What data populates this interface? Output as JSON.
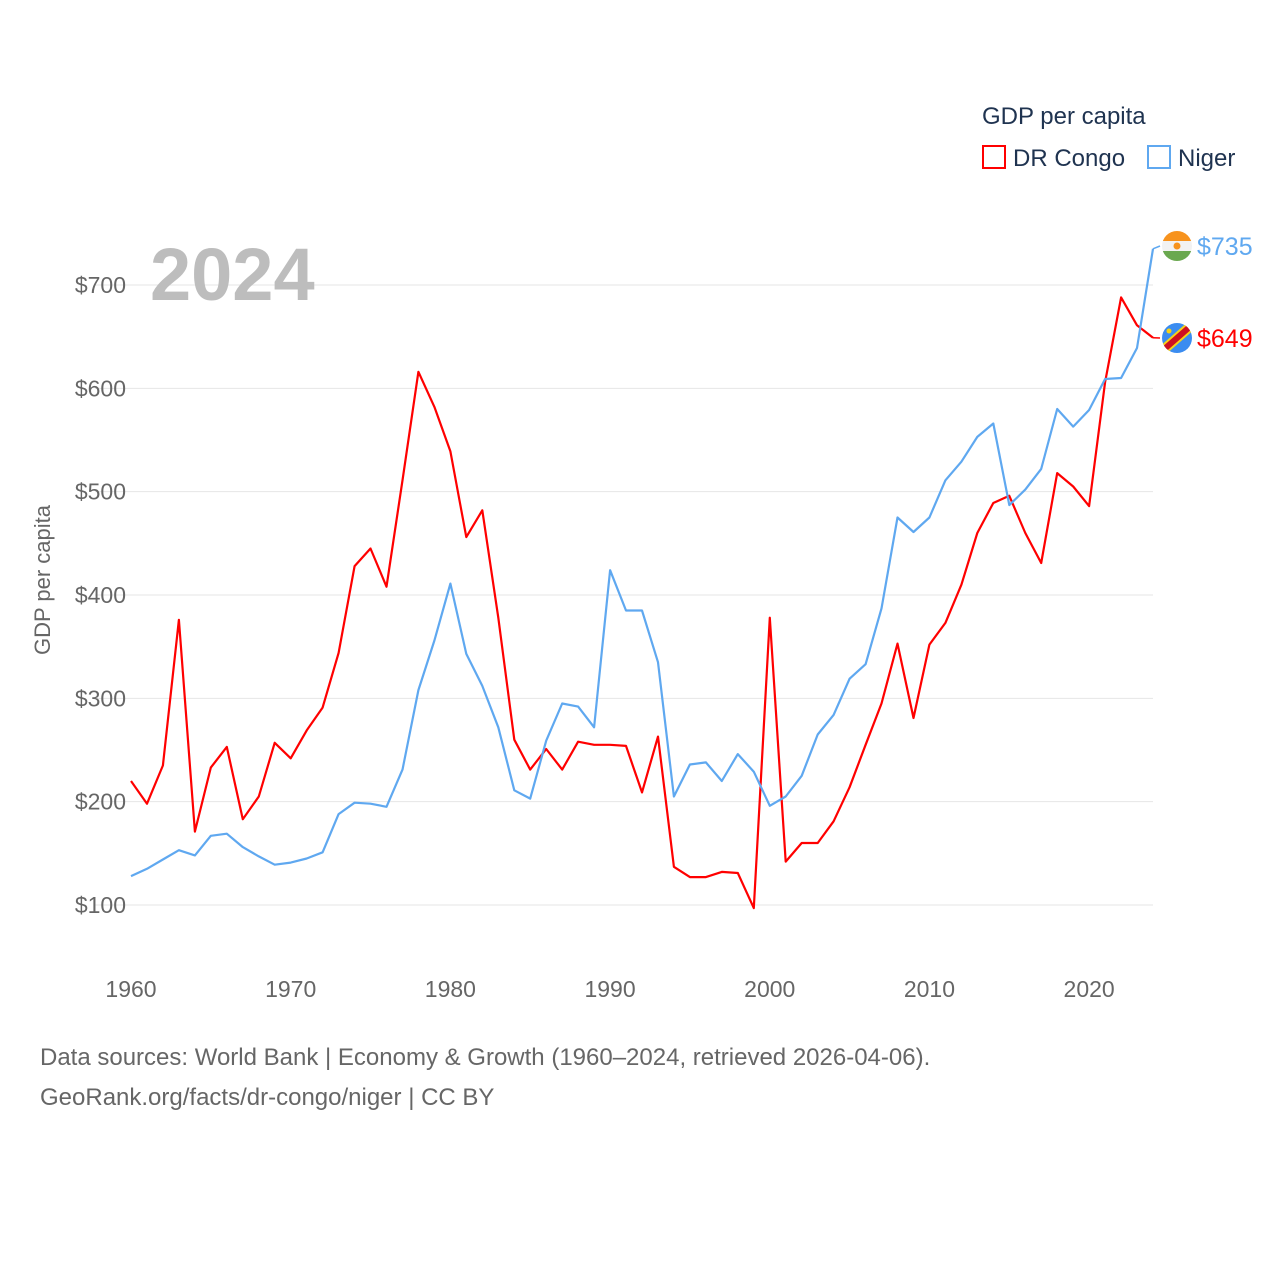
{
  "chart_data": {
    "type": "line",
    "title": "GDP per capita",
    "xlabel": "",
    "ylabel": "GDP per capita",
    "year_label": "2024",
    "xlim": [
      1960,
      2024
    ],
    "ylim": [
      50,
      750
    ],
    "x_ticks": [
      1960,
      1970,
      1980,
      1990,
      2000,
      2010,
      2020
    ],
    "y_ticks": [
      100,
      200,
      300,
      400,
      500,
      600,
      700
    ],
    "y_tick_labels": [
      "$100",
      "$200",
      "$300",
      "$400",
      "$500",
      "$600",
      "$700"
    ],
    "grid": true,
    "legend_position": "top-right",
    "legend_title": "GDP per capita",
    "x": [
      1960,
      1961,
      1962,
      1963,
      1964,
      1965,
      1966,
      1967,
      1968,
      1969,
      1970,
      1971,
      1972,
      1973,
      1974,
      1975,
      1976,
      1977,
      1978,
      1979,
      1980,
      1981,
      1982,
      1983,
      1984,
      1985,
      1986,
      1987,
      1988,
      1989,
      1990,
      1991,
      1992,
      1993,
      1994,
      1995,
      1996,
      1997,
      1998,
      1999,
      2000,
      2001,
      2002,
      2003,
      2004,
      2005,
      2006,
      2007,
      2008,
      2009,
      2010,
      2011,
      2012,
      2013,
      2014,
      2015,
      2016,
      2017,
      2018,
      2019,
      2020,
      2021,
      2022,
      2023,
      2024
    ],
    "series": [
      {
        "name": "DR Congo",
        "color": "#ff0000",
        "end_label": "$649",
        "values": [
          220,
          198,
          235,
          376,
          171,
          233,
          253,
          183,
          205,
          257,
          242,
          269,
          291,
          344,
          428,
          445,
          408,
          511,
          616,
          582,
          539,
          456,
          482,
          378,
          260,
          231,
          251,
          231,
          258,
          255,
          255,
          254,
          209,
          263,
          137,
          127,
          127,
          132,
          131,
          97,
          378,
          142,
          160,
          160,
          181,
          214,
          255,
          295,
          353,
          281,
          352,
          373,
          410,
          460,
          489,
          496,
          460,
          431,
          518,
          505,
          486,
          606,
          688,
          661,
          649
        ]
      },
      {
        "name": "Niger",
        "color": "#5fa8f0",
        "end_label": "$735",
        "values": [
          128,
          135,
          144,
          153,
          148,
          167,
          169,
          156,
          147,
          139,
          141,
          145,
          151,
          188,
          199,
          198,
          195,
          231,
          308,
          356,
          411,
          343,
          312,
          272,
          211,
          203,
          259,
          295,
          292,
          272,
          424,
          385,
          385,
          335,
          205,
          236,
          238,
          220,
          246,
          229,
          196,
          205,
          225,
          265,
          284,
          319,
          333,
          387,
          475,
          461,
          475,
          511,
          529,
          553,
          566,
          487,
          502,
          522,
          580,
          563,
          579,
          609,
          610,
          639,
          735
        ]
      }
    ]
  },
  "footer": {
    "line1": "Data sources: World Bank | Economy & Growth (1960–2024, retrieved 2026-04-06).",
    "line2": "GeoRank.org/facts/dr-congo/niger | CC BY"
  }
}
